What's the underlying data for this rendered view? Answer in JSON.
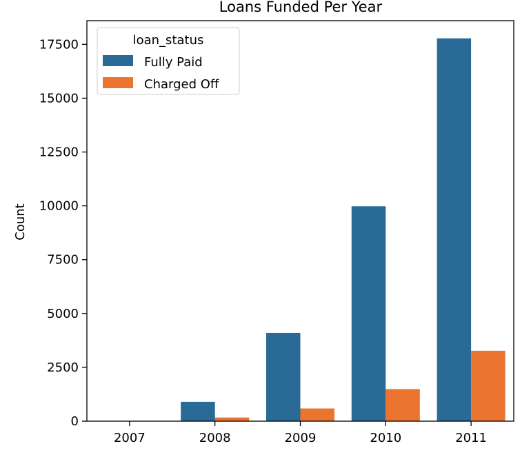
{
  "chart_data": {
    "type": "bar",
    "title": "Loans Funded Per Year",
    "xlabel": "",
    "ylabel": "Count",
    "categories": [
      "2007",
      "2008",
      "2009",
      "2010",
      "2011"
    ],
    "series": [
      {
        "name": "Fully Paid",
        "color": "#2a6a97",
        "values": [
          0,
          900,
          4100,
          9980,
          17780
        ]
      },
      {
        "name": "Charged Off",
        "color": "#eb7530",
        "values": [
          0,
          170,
          590,
          1490,
          3270
        ]
      }
    ],
    "ylim": [
      0,
      18600
    ],
    "yticks": [
      0,
      2500,
      5000,
      7500,
      10000,
      12500,
      15000,
      17500
    ],
    "ytick_labels": [
      "0",
      "2500",
      "5000",
      "7500",
      "10000",
      "12500",
      "15000",
      "17500"
    ],
    "legend": {
      "title": "loan_status",
      "placement": "upper-left"
    },
    "grid": false
  }
}
